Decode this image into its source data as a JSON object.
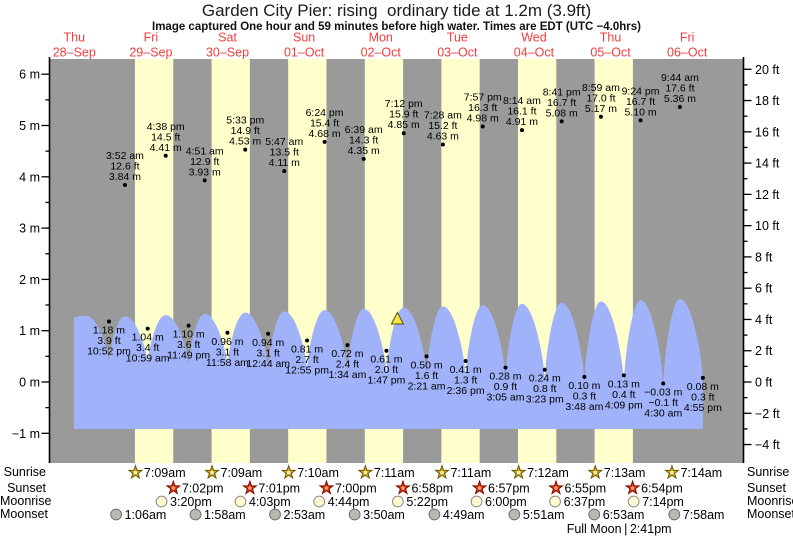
{
  "title": "Garden City Pier: rising  ordinary tide at 1.2m (3.9ft)",
  "subtitle": "Image captured One hour and 59 minutes before high water. Times are EDT (UTC −4.0hrs)",
  "row_labels": {
    "sunrise": "Sunrise",
    "sunset": "Sunset",
    "moonrise": "Moonrise",
    "moonset": "Moonset"
  },
  "full_moon": {
    "label": "Full Moon",
    "separator": "|",
    "time": "2:41pm",
    "day": 7
  },
  "colors": {
    "background": "#ffffff",
    "night_band": "#9a9a9a",
    "daylight_band": "#ffffcc",
    "tide_fill": "#9fb2fa",
    "axis": "#000000",
    "date_red": "#f23d3d",
    "label_text": "#000000",
    "sunrise_star_fill": "#d9a928",
    "sunrise_star_stroke": "#6b5a00",
    "sunset_star_fill": "#e63214",
    "sunset_star_stroke": "#7a1000",
    "moonrise_fill": "#fdfad2",
    "moonrise_stroke": "#8a8a8a",
    "moonset_fill": "#b9b9b1",
    "moonset_stroke": "#6f6f6f",
    "now_marker_fill": "#f5e642",
    "now_marker_stroke": "#55500a"
  },
  "chart_data": {
    "type": "area",
    "title": "Garden City Pier: rising  ordinary tide at 1.2m (3.9ft)",
    "ylabel_left_unit": "m",
    "ylabel_right_unit": "ft",
    "y_axis_left": {
      "unit": "m",
      "min": -1,
      "max": 6,
      "major_ticks": [
        6,
        5,
        4,
        3,
        2,
        1,
        0,
        -1
      ]
    },
    "y_axis_right": {
      "unit": "ft",
      "min": -4,
      "max": 20,
      "major_ticks": [
        20,
        18,
        16,
        14,
        12,
        10,
        8,
        6,
        4,
        2,
        0,
        -2,
        -4
      ]
    },
    "days": [
      {
        "weekday": "Thu",
        "date": "28–Sep"
      },
      {
        "weekday": "Fri",
        "date": "29–Sep"
      },
      {
        "weekday": "Sat",
        "date": "30–Sep"
      },
      {
        "weekday": "Sun",
        "date": "01–Oct"
      },
      {
        "weekday": "Mon",
        "date": "02–Oct"
      },
      {
        "weekday": "Tue",
        "date": "03–Oct"
      },
      {
        "weekday": "Wed",
        "date": "04–Oct"
      },
      {
        "weekday": "Thu",
        "date": "05–Oct"
      },
      {
        "weekday": "Fri",
        "date": "06–Oct"
      }
    ],
    "daylight_hours": {
      "start": "7:00 am",
      "end": "7:00 pm",
      "days": [
        1,
        2,
        3,
        4,
        5,
        6,
        7
      ]
    },
    "high_tides": [
      {
        "day": 1,
        "time": "3:52 am",
        "m": 3.84,
        "ft": 12.6
      },
      {
        "day": 1,
        "time": "4:38 pm",
        "m": 4.41,
        "ft": 14.5
      },
      {
        "day": 2,
        "time": "4:51 am",
        "m": 3.93,
        "ft": 12.9
      },
      {
        "day": 2,
        "time": "5:33 pm",
        "m": 4.53,
        "ft": 14.9
      },
      {
        "day": 3,
        "time": "5:47 am",
        "m": 4.11,
        "ft": 13.5
      },
      {
        "day": 3,
        "time": "6:24 pm",
        "m": 4.68,
        "ft": 15.4
      },
      {
        "day": 4,
        "time": "6:39 am",
        "m": 4.35,
        "ft": 14.3
      },
      {
        "day": 4,
        "time": "7:12 pm",
        "m": 4.85,
        "ft": 15.9
      },
      {
        "day": 5,
        "time": "7:28 am",
        "m": 4.63,
        "ft": 15.2
      },
      {
        "day": 5,
        "time": "7:57 pm",
        "m": 4.98,
        "ft": 16.3
      },
      {
        "day": 6,
        "time": "8:14 am",
        "m": 4.91,
        "ft": 16.1
      },
      {
        "day": 6,
        "time": "8:41 pm",
        "m": 5.08,
        "ft": 16.7
      },
      {
        "day": 7,
        "time": "8:59 am",
        "m": 5.17,
        "ft": 17.0
      },
      {
        "day": 7,
        "time": "9:24 pm",
        "m": 5.1,
        "ft": 16.7
      },
      {
        "day": 8,
        "time": "9:44 am",
        "m": 5.36,
        "ft": 17.6
      }
    ],
    "low_tides": [
      {
        "day": 0,
        "time": "10:52 pm",
        "m": 1.18,
        "ft": 3.9
      },
      {
        "day": 1,
        "time": "10:59 am",
        "m": 1.04,
        "ft": 3.4
      },
      {
        "day": 1,
        "time": "11:49 pm",
        "m": 1.1,
        "ft": 3.6
      },
      {
        "day": 2,
        "time": "11:58 am",
        "m": 0.96,
        "ft": 3.1
      },
      {
        "day": 3,
        "time": "12:44 am",
        "m": 0.94,
        "ft": 3.1
      },
      {
        "day": 3,
        "time": "12:55 pm",
        "m": 0.81,
        "ft": 2.7
      },
      {
        "day": 4,
        "time": "1:34 am",
        "m": 0.72,
        "ft": 2.4
      },
      {
        "day": 4,
        "time": "1:47 pm",
        "m": 0.61,
        "ft": 2.0
      },
      {
        "day": 5,
        "time": "2:21 am",
        "m": 0.5,
        "ft": 1.6
      },
      {
        "day": 5,
        "time": "2:36 pm",
        "m": 0.41,
        "ft": 1.3
      },
      {
        "day": 6,
        "time": "3:05 am",
        "m": 0.28,
        "ft": 0.9
      },
      {
        "day": 6,
        "time": "3:23 pm",
        "m": 0.24,
        "ft": 0.8
      },
      {
        "day": 7,
        "time": "3:48 am",
        "m": 0.1,
        "ft": 0.3
      },
      {
        "day": 7,
        "time": "4:09 pm",
        "m": 0.13,
        "ft": 0.4
      },
      {
        "day": 8,
        "time": "4:30 am",
        "m": -0.03,
        "ft": -0.1
      },
      {
        "day": 8,
        "time": "4:55 pm",
        "m": 0.08,
        "ft": 0.3
      }
    ],
    "now_marker": {
      "day": 4,
      "time": "5:13 pm"
    },
    "sun_moon": {
      "sunrise": [
        {
          "day": 1,
          "time": "7:09am"
        },
        {
          "day": 2,
          "time": "7:09am"
        },
        {
          "day": 3,
          "time": "7:10am"
        },
        {
          "day": 4,
          "time": "7:11am"
        },
        {
          "day": 5,
          "time": "7:11am"
        },
        {
          "day": 6,
          "time": "7:12am"
        },
        {
          "day": 7,
          "time": "7:13am"
        },
        {
          "day": 8,
          "time": "7:14am"
        }
      ],
      "sunset": [
        {
          "day": 1,
          "time": "7:02pm"
        },
        {
          "day": 2,
          "time": "7:01pm"
        },
        {
          "day": 3,
          "time": "7:00pm"
        },
        {
          "day": 4,
          "time": "6:58pm"
        },
        {
          "day": 5,
          "time": "6:57pm"
        },
        {
          "day": 6,
          "time": "6:55pm"
        },
        {
          "day": 7,
          "time": "6:54pm"
        }
      ],
      "moonrise": [
        {
          "day": 1,
          "time": "3:20pm"
        },
        {
          "day": 2,
          "time": "4:03pm"
        },
        {
          "day": 3,
          "time": "4:44pm"
        },
        {
          "day": 4,
          "time": "5:22pm"
        },
        {
          "day": 5,
          "time": "6:00pm"
        },
        {
          "day": 6,
          "time": "6:37pm"
        },
        {
          "day": 7,
          "time": "7:14pm"
        }
      ],
      "moonset": [
        {
          "day": 1,
          "time": "1:06am"
        },
        {
          "day": 2,
          "time": "1:58am"
        },
        {
          "day": 3,
          "time": "2:53am"
        },
        {
          "day": 4,
          "time": "3:50am"
        },
        {
          "day": 5,
          "time": "4:49am"
        },
        {
          "day": 6,
          "time": "5:51am"
        },
        {
          "day": 7,
          "time": "6:53am"
        },
        {
          "day": 8,
          "time": "7:58am"
        }
      ]
    }
  }
}
